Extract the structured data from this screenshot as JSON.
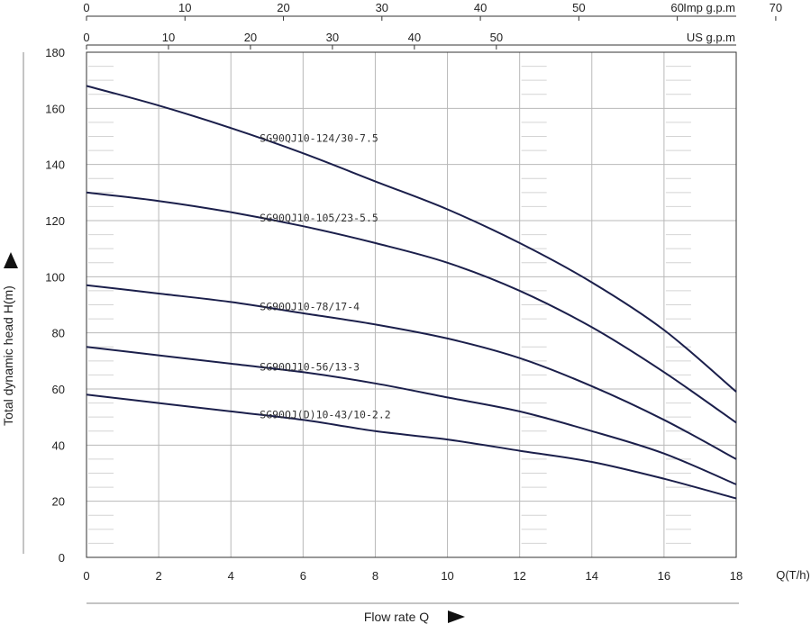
{
  "chart_data": {
    "type": "line",
    "xlabel": "Flow rate Q",
    "x_unit_label": "Q(T/h)",
    "ylabel": "Total dynamic head H(m)",
    "xlim": [
      0,
      18
    ],
    "ylim": [
      0,
      180
    ],
    "x_ticks": [
      0,
      2,
      4,
      6,
      8,
      10,
      12,
      14,
      16,
      18
    ],
    "y_ticks": [
      0,
      20,
      40,
      60,
      80,
      100,
      120,
      140,
      160,
      180
    ],
    "grid": true,
    "top_axes": [
      {
        "label": "Imp g.p.m",
        "ticks": [
          0,
          10,
          20,
          30,
          40,
          50,
          60,
          70
        ],
        "t_per_h_per_unit": 0.2728
      },
      {
        "label": "US g.p.m",
        "ticks": [
          0,
          10,
          20,
          30,
          40,
          50
        ],
        "t_per_h_per_unit": 0.2271
      }
    ],
    "series": [
      {
        "name": "SG90QJ10-124/30-7.5",
        "x": [
          0,
          2,
          4,
          6,
          8,
          10,
          12,
          14,
          16,
          18
        ],
        "y": [
          168,
          161,
          153,
          144,
          134,
          124,
          112,
          98,
          81,
          59
        ]
      },
      {
        "name": "SG90QJ10-105/23-5.5",
        "x": [
          0,
          2,
          4,
          6,
          8,
          10,
          12,
          14,
          16,
          18
        ],
        "y": [
          130,
          127,
          123,
          118,
          112,
          105,
          95,
          82,
          66,
          48
        ]
      },
      {
        "name": "SG90QJ10-78/17-4",
        "x": [
          0,
          2,
          4,
          6,
          8,
          10,
          12,
          14,
          16,
          18
        ],
        "y": [
          97,
          94,
          91,
          87,
          83,
          78,
          71,
          61,
          49,
          35
        ]
      },
      {
        "name": "SG90QJ10-56/13-3",
        "x": [
          0,
          2,
          4,
          6,
          8,
          10,
          12,
          14,
          16,
          18
        ],
        "y": [
          75,
          72,
          69,
          66,
          62,
          57,
          52,
          45,
          37,
          26
        ]
      },
      {
        "name": "SG90QJ(D)10-43/10-2.2",
        "x": [
          0,
          2,
          4,
          6,
          8,
          10,
          12,
          14,
          16,
          18
        ],
        "y": [
          58,
          55,
          52,
          49,
          45,
          42,
          38,
          34,
          28,
          21
        ]
      }
    ],
    "colors": {
      "curve": "#1b1f4b",
      "grid": "#b8b8b8",
      "axis": "#333333"
    }
  }
}
